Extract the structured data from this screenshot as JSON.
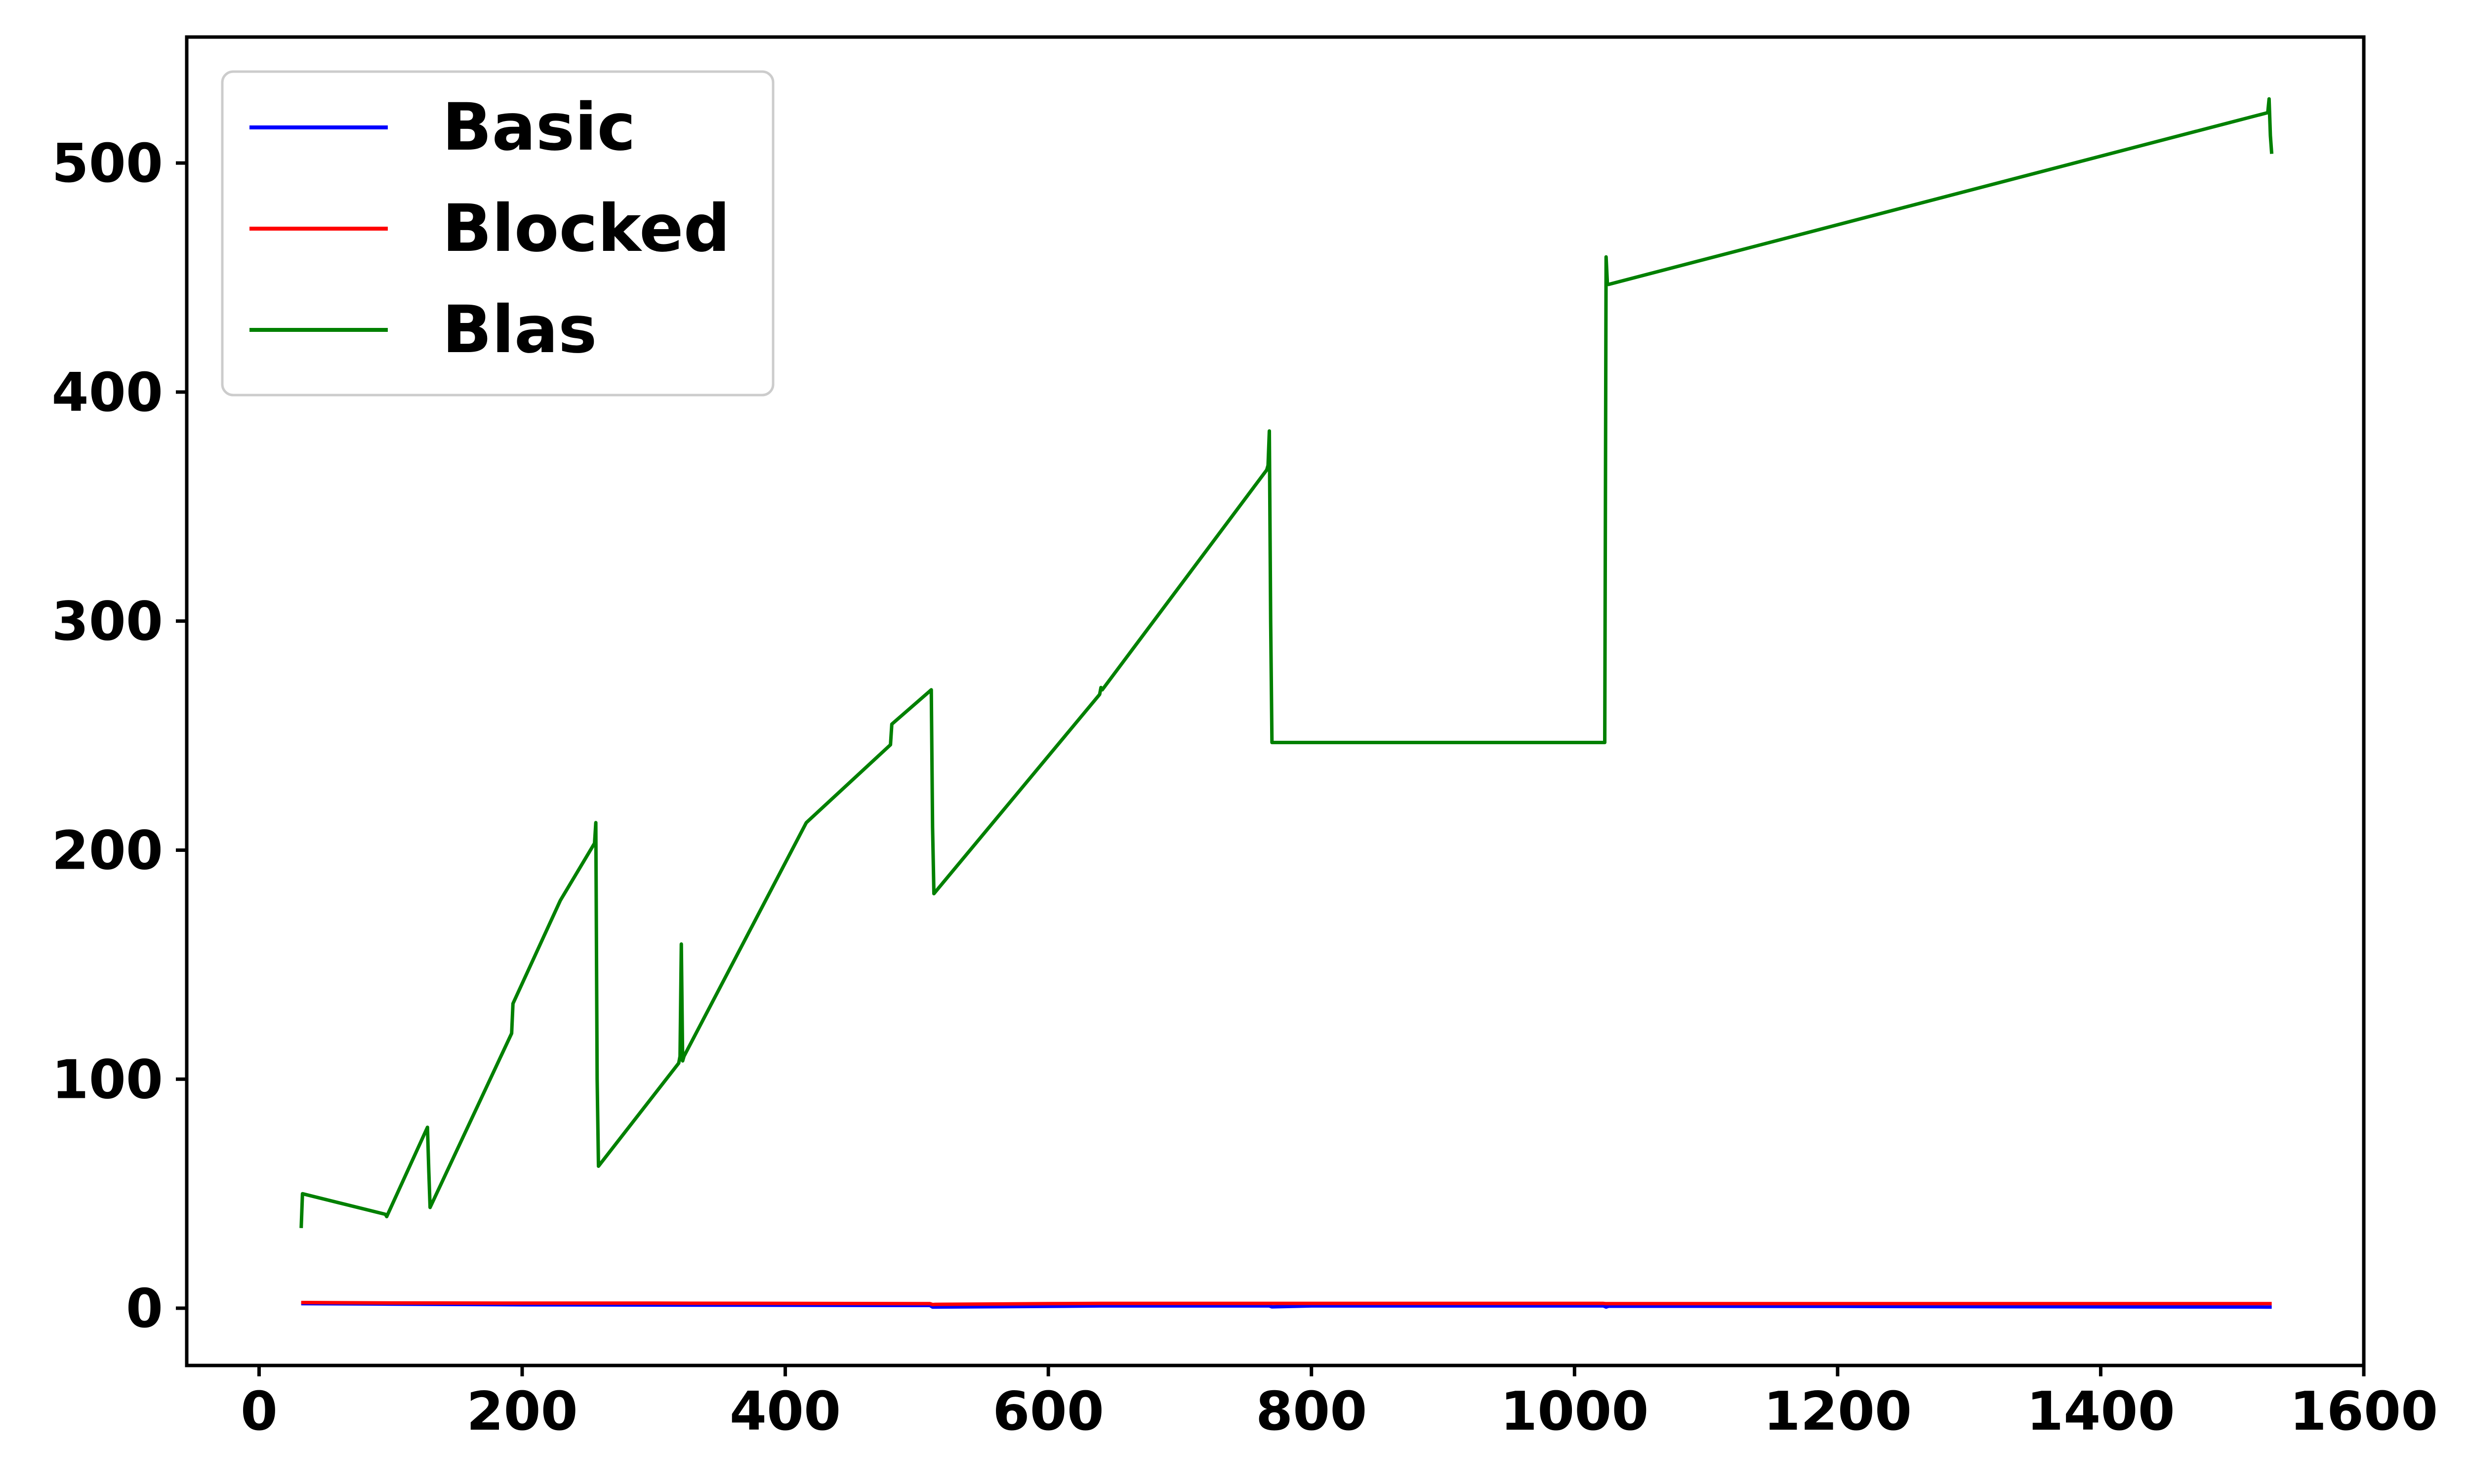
{
  "chart_data": {
    "type": "line",
    "title": "",
    "xlabel": "",
    "ylabel": "",
    "xlim": [
      -55,
      1600
    ],
    "ylim": [
      -25,
      555
    ],
    "x_ticks": [
      0,
      200,
      400,
      600,
      800,
      1000,
      1200,
      1400,
      1600
    ],
    "y_ticks": [
      0,
      100,
      200,
      300,
      400,
      500
    ],
    "grid": false,
    "legend_position": "top-left",
    "series": [
      {
        "name": "Basic",
        "color": "#0000ff",
        "x": [
          32,
          100,
          200,
          300,
          400,
          500,
          510,
          512,
          514,
          600,
          640,
          700,
          768,
          770,
          800,
          1000,
          1022,
          1024,
          1026,
          1200,
          1400,
          1526,
          1528,
          1530
        ],
        "y": [
          2.0,
          1.8,
          1.5,
          1.4,
          1.3,
          1.2,
          1.2,
          0.5,
          0.5,
          0.8,
          1.0,
          1.0,
          1.0,
          0.6,
          1.0,
          1.0,
          1.0,
          0.5,
          0.9,
          0.8,
          0.6,
          0.5,
          0.5,
          0.5
        ]
      },
      {
        "name": "Blocked",
        "color": "#ff0000",
        "x": [
          32,
          100,
          200,
          300,
          400,
          500,
          510,
          512,
          514,
          600,
          640,
          700,
          768,
          770,
          800,
          1000,
          1022,
          1024,
          1026,
          1200,
          1400,
          1526,
          1528,
          1530
        ],
        "y": [
          2.5,
          2.3,
          2.2,
          2.2,
          2.1,
          2.0,
          2.0,
          1.6,
          1.7,
          2.0,
          2.1,
          2.1,
          2.1,
          2.1,
          2.1,
          2.1,
          2.1,
          2.0,
          2.0,
          2.0,
          2.0,
          2.0,
          2.0,
          2.0
        ]
      },
      {
        "name": "Blas",
        "color": "#008000",
        "x": [
          32,
          33,
          96,
          97,
          128,
          129,
          130,
          192,
          193,
          229,
          255,
          256,
          257,
          258,
          319,
          320,
          321,
          322,
          323,
          416,
          480,
          481,
          511,
          512,
          513,
          639,
          640,
          641,
          766,
          767,
          768,
          769,
          770,
          1022,
          1023,
          1024,
          1025,
          1026,
          1527,
          1528,
          1529,
          1530
        ],
        "y": [
          35,
          50,
          41,
          40,
          79,
          60,
          44,
          120,
          133,
          178,
          203,
          212,
          100,
          62,
          107,
          110,
          159,
          108,
          110,
          212,
          246,
          255,
          270,
          210,
          181,
          268,
          271,
          270,
          366,
          368,
          383,
          300,
          247,
          247,
          247,
          459,
          447,
          447,
          522,
          528,
          512,
          504
        ]
      }
    ]
  }
}
